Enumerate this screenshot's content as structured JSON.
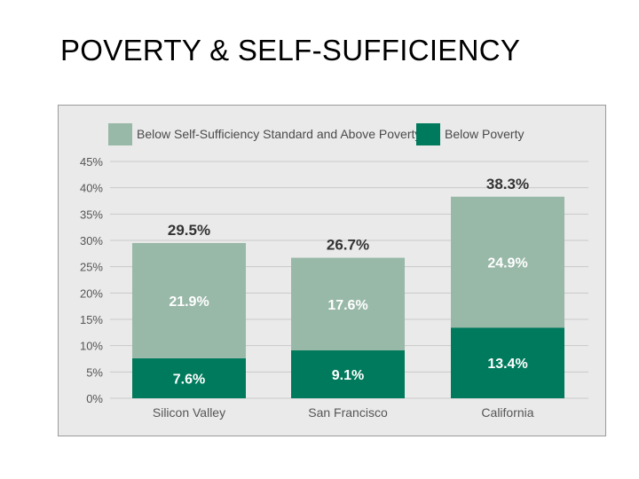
{
  "slide": {
    "title": "POVERTY & SELF-SUFFICIENCY"
  },
  "colors": {
    "below_standard": "#98b8a8",
    "below_poverty": "#007a5c",
    "gridline": "#c9c9c9",
    "background": "#eaeaea"
  },
  "chart_data": {
    "type": "bar",
    "stacked": true,
    "categories": [
      "Silicon Valley",
      "San Francisco",
      "California"
    ],
    "series": [
      {
        "name": "Below Poverty",
        "values": [
          7.6,
          9.1,
          13.4
        ],
        "labels": [
          "7.6%",
          "9.1%",
          "13.4%"
        ]
      },
      {
        "name": "Below Self-Sufficiency Standard and Above Poverty",
        "values": [
          21.9,
          17.6,
          24.9
        ],
        "labels": [
          "21.9%",
          "17.6%",
          "24.9%"
        ]
      }
    ],
    "totals": [
      29.5,
      26.7,
      38.3
    ],
    "total_labels": [
      "29.5%",
      "26.7%",
      "38.3%"
    ],
    "y_ticks": [
      0,
      5,
      10,
      15,
      20,
      25,
      30,
      35,
      40,
      45
    ],
    "y_tick_labels": [
      "0%",
      "5%",
      "10%",
      "15%",
      "20%",
      "25%",
      "30%",
      "35%",
      "40%",
      "45%"
    ],
    "ylim": [
      0,
      45
    ],
    "grid": true,
    "legend_position": "top",
    "legend": [
      {
        "label": "Below Self-Sufficiency Standard and Above Poverty",
        "color": "#98b8a8"
      },
      {
        "label": "Below Poverty",
        "color": "#007a5c"
      }
    ]
  }
}
